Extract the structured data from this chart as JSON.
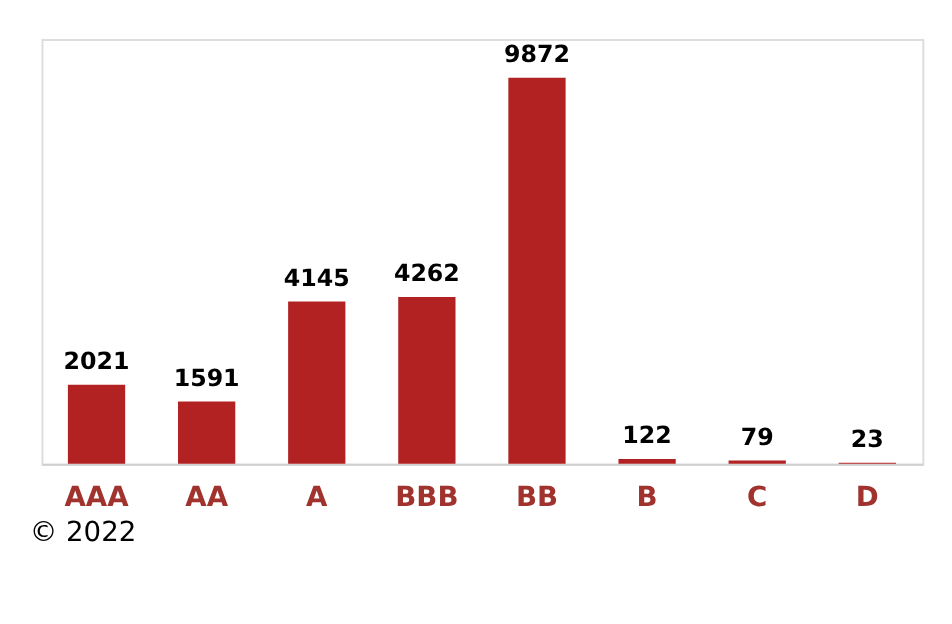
{
  "chart_data": {
    "type": "bar",
    "categories": [
      "AAA",
      "AA",
      "A",
      "BBB",
      "BB",
      "B",
      "C",
      "D"
    ],
    "values": [
      2021,
      1591,
      4145,
      4262,
      9872,
      122,
      79,
      23
    ],
    "color": "#b22222",
    "data_labels": true,
    "grid": false,
    "annotations": [
      "© 2022"
    ]
  }
}
